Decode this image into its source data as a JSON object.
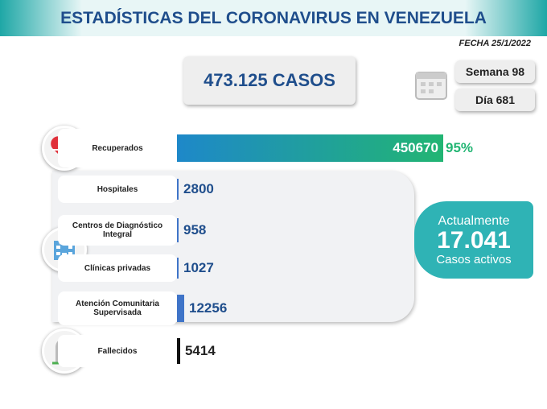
{
  "chart_data": {
    "type": "bar",
    "title": "ESTADÍSTICAS DEL CORONAVIRUS EN VENEZUELA",
    "date": "FECHA 25/1/2022",
    "total": "473.125 CASOS",
    "week": "Semana 98",
    "day": "Día 681",
    "categories": [
      "Recuperados",
      "Hospitales",
      "Centros de Diagnóstico Integral",
      "Clínicas privadas",
      "Atención Comunitaria Supervisada",
      "Fallecidos"
    ],
    "values": [
      450670,
      2800,
      958,
      1027,
      12256,
      5414
    ],
    "colors": [
      "#1e88c9",
      "#3f74c8",
      "#3f74c8",
      "#3f74c8",
      "#3f74c8",
      "#111111"
    ],
    "recovered_share": "95%",
    "active_heading": "Actualmente",
    "active_value": "17.041",
    "active_label": "Casos activos"
  }
}
